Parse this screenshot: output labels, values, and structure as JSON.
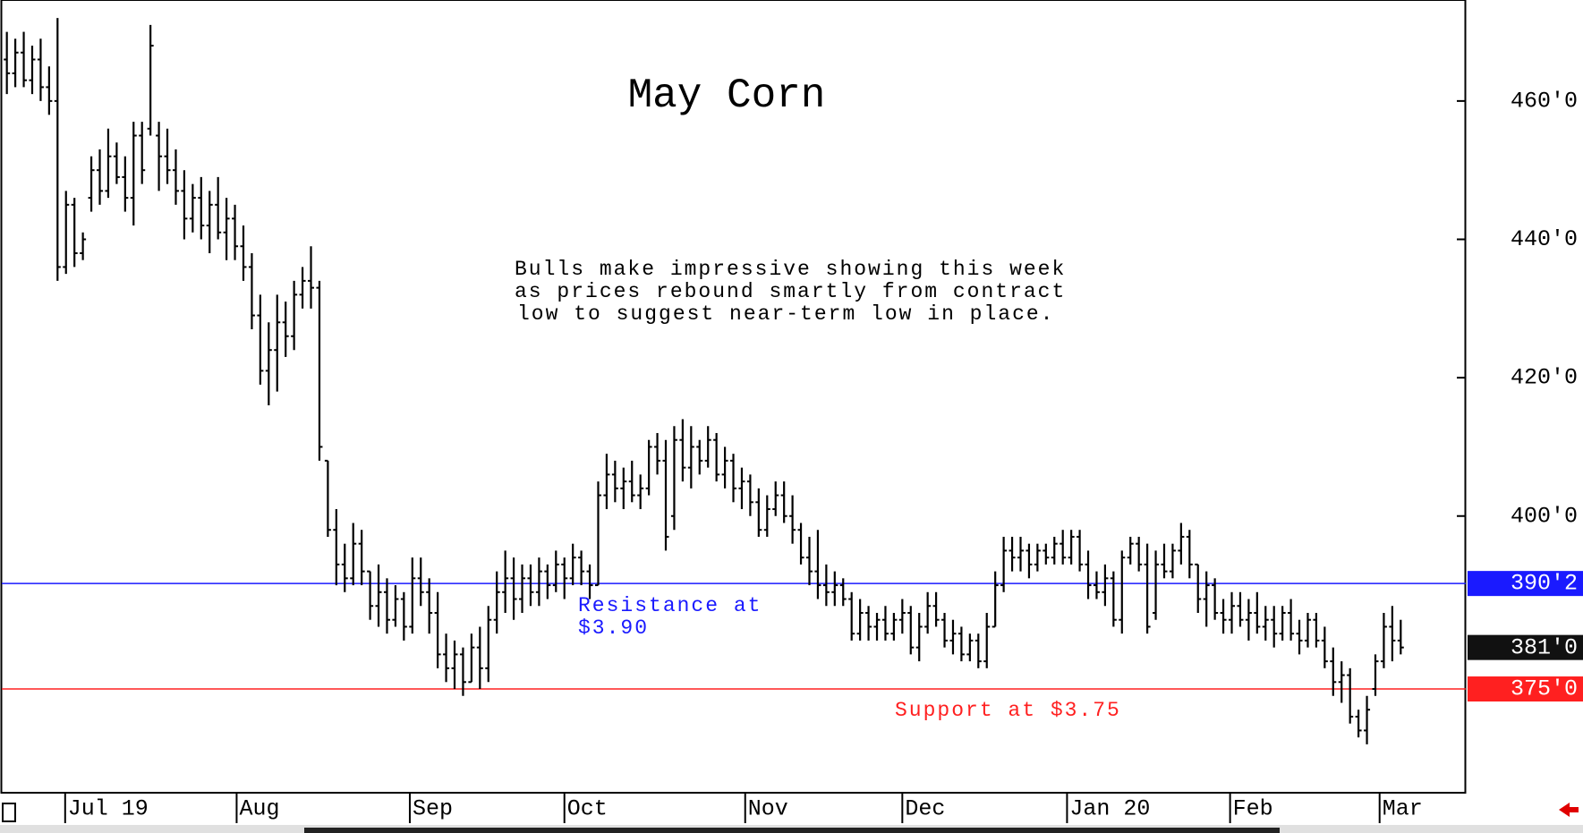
{
  "chart_data": {
    "type": "ohlc",
    "title": "May Corn",
    "annotation": [
      "Bulls make impressive showing this week",
      "as prices rebound smartly from contract",
      "low to suggest near-term low in place."
    ],
    "color": "#000000",
    "ylim": [
      360,
      474.6
    ],
    "xlim": [
      -0.6,
      172.7
    ],
    "yticks": [
      {
        "value": 400,
        "label": "400'0"
      },
      {
        "value": 420,
        "label": "420'0"
      },
      {
        "value": 440,
        "label": "440'0"
      },
      {
        "value": 460,
        "label": "460'0"
      }
    ],
    "xticks": [
      {
        "value": 6.9,
        "label": "Jul 19"
      },
      {
        "value": 27.2,
        "label": "Aug"
      },
      {
        "value": 47.7,
        "label": "Sep"
      },
      {
        "value": 66,
        "label": "Oct"
      },
      {
        "value": 87.4,
        "label": "Nov"
      },
      {
        "value": 106,
        "label": "Dec"
      },
      {
        "value": 125.5,
        "label": "Jan 20"
      },
      {
        "value": 144.8,
        "label": "Feb"
      },
      {
        "value": 162.5,
        "label": "Mar"
      }
    ],
    "lines": [
      {
        "value": 390.25,
        "color": "#1a1aff",
        "text": [
          "Resistance at",
          "$3.90"
        ]
      },
      {
        "value": 375,
        "color": "#ff2020",
        "text": [
          "Support at $3.75"
        ]
      }
    ],
    "price_tags": [
      {
        "value": 390.25,
        "label": "390'2",
        "color": "#1a1aff"
      },
      {
        "value": 381,
        "label": "381'0",
        "color": "#111111"
      },
      {
        "value": 375,
        "label": "375'0",
        "color": "#ff2020"
      }
    ],
    "bars": [
      [
        466,
        470,
        461,
        464
      ],
      [
        464,
        469,
        462,
        467
      ],
      [
        467,
        470,
        462,
        463
      ],
      [
        463,
        468,
        461,
        466
      ],
      [
        466,
        469,
        460,
        462
      ],
      [
        462,
        465,
        458,
        460
      ],
      [
        460,
        472,
        434,
        436
      ],
      [
        436,
        447,
        435,
        445
      ],
      [
        445,
        446,
        436,
        438
      ],
      [
        438,
        441,
        437,
        440
      ],
      [
        446,
        452,
        444,
        450
      ],
      [
        450,
        453,
        445,
        447
      ],
      [
        447,
        456,
        446,
        452
      ],
      [
        452,
        454,
        448,
        449
      ],
      [
        449,
        452,
        444,
        446
      ],
      [
        446,
        457,
        442,
        455
      ],
      [
        455,
        457,
        448,
        450
      ],
      [
        456,
        471,
        455,
        468
      ],
      [
        455,
        457,
        447,
        452
      ],
      [
        452,
        456,
        448,
        450
      ],
      [
        450,
        453,
        445,
        447
      ],
      [
        447,
        450,
        440,
        443
      ],
      [
        443,
        448,
        441,
        446
      ],
      [
        446,
        449,
        440,
        442
      ],
      [
        442,
        447,
        438,
        445
      ],
      [
        445,
        449,
        440,
        441
      ],
      [
        441,
        446,
        437,
        443
      ],
      [
        443,
        445,
        437,
        439
      ],
      [
        439,
        442,
        434,
        436
      ],
      [
        436,
        438,
        427,
        429
      ],
      [
        429,
        432,
        419,
        421
      ],
      [
        421,
        428,
        416,
        424
      ],
      [
        424,
        432,
        418,
        428
      ],
      [
        428,
        431,
        423,
        426
      ],
      [
        426,
        434,
        424,
        432
      ],
      [
        432,
        436,
        430,
        434
      ],
      [
        434,
        439,
        430,
        433
      ],
      [
        433,
        434,
        408,
        410
      ],
      [
        408,
        408,
        397,
        398
      ],
      [
        398,
        401,
        390,
        393
      ],
      [
        393,
        396,
        389,
        391
      ],
      [
        391,
        399,
        390,
        396
      ],
      [
        396,
        398,
        390,
        392
      ],
      [
        392,
        392,
        385,
        387
      ],
      [
        387,
        393,
        384,
        389
      ],
      [
        389,
        391,
        383,
        385
      ],
      [
        385,
        390,
        384,
        388
      ],
      [
        388,
        389,
        382,
        384
      ],
      [
        384,
        394,
        383,
        391
      ],
      [
        391,
        394,
        387,
        389
      ],
      [
        389,
        391,
        383,
        386
      ],
      [
        386,
        389,
        378,
        380
      ],
      [
        380,
        383,
        376,
        378
      ],
      [
        378,
        382,
        375,
        380
      ],
      [
        380,
        381,
        374,
        376
      ],
      [
        376,
        383,
        376,
        381
      ],
      [
        381,
        384,
        375,
        378
      ],
      [
        378,
        387,
        376,
        385
      ],
      [
        385,
        392,
        383,
        389
      ],
      [
        389,
        395,
        386,
        391
      ],
      [
        391,
        394,
        385,
        388
      ],
      [
        388,
        393,
        386,
        391
      ],
      [
        391,
        393,
        387,
        389
      ],
      [
        389,
        394,
        387,
        392
      ],
      [
        392,
        393,
        388,
        390
      ],
      [
        390,
        395,
        389,
        393
      ],
      [
        393,
        394,
        388,
        391
      ],
      [
        391,
        396,
        390,
        394
      ],
      [
        394,
        395,
        390,
        392
      ],
      [
        392,
        393,
        388,
        390
      ],
      [
        390,
        405,
        390,
        403
      ],
      [
        403,
        409,
        401,
        406
      ],
      [
        406,
        408,
        402,
        404
      ],
      [
        404,
        407,
        401,
        405
      ],
      [
        405,
        408,
        402,
        403
      ],
      [
        403,
        406,
        401,
        404
      ],
      [
        404,
        411,
        403,
        410
      ],
      [
        410,
        412,
        406,
        408
      ],
      [
        408,
        411,
        395,
        397
      ],
      [
        400,
        413,
        398,
        411
      ],
      [
        411,
        414,
        405,
        407
      ],
      [
        407,
        413,
        404,
        410
      ],
      [
        410,
        411,
        406,
        408
      ],
      [
        408,
        413,
        407,
        411
      ],
      [
        411,
        412,
        405,
        406
      ],
      [
        406,
        410,
        404,
        408
      ],
      [
        408,
        409,
        402,
        404
      ],
      [
        404,
        407,
        401,
        405
      ],
      [
        405,
        406,
        400,
        402
      ],
      [
        402,
        404,
        397,
        398
      ],
      [
        398,
        403,
        397,
        401
      ],
      [
        401,
        405,
        400,
        403
      ],
      [
        403,
        405,
        399,
        400
      ],
      [
        400,
        403,
        396,
        398
      ],
      [
        398,
        399,
        393,
        394
      ],
      [
        394,
        397,
        390,
        392
      ],
      [
        392,
        398,
        388,
        390
      ],
      [
        390,
        393,
        387,
        389
      ],
      [
        389,
        392,
        387,
        390
      ],
      [
        390,
        391,
        387,
        388
      ],
      [
        388,
        389,
        382,
        383
      ],
      [
        383,
        388,
        382,
        386
      ],
      [
        386,
        387,
        382,
        384
      ],
      [
        384,
        386,
        382,
        385
      ],
      [
        385,
        387,
        382,
        383
      ],
      [
        383,
        386,
        382,
        385
      ],
      [
        385,
        388,
        383,
        386
      ],
      [
        386,
        387,
        380,
        381
      ],
      [
        381,
        386,
        379,
        384
      ],
      [
        384,
        389,
        383,
        387
      ],
      [
        387,
        389,
        384,
        385
      ],
      [
        385,
        386,
        381,
        382
      ],
      [
        382,
        385,
        380,
        383
      ],
      [
        383,
        384,
        379,
        380
      ],
      [
        380,
        383,
        379,
        382
      ],
      [
        382,
        383,
        378,
        379
      ],
      [
        379,
        386,
        378,
        384
      ],
      [
        384,
        392,
        384,
        390
      ],
      [
        390,
        397,
        389,
        395
      ],
      [
        395,
        397,
        392,
        394
      ],
      [
        394,
        397,
        392,
        395
      ],
      [
        395,
        396,
        391,
        393
      ],
      [
        393,
        396,
        392,
        395
      ],
      [
        395,
        396,
        393,
        394
      ],
      [
        394,
        397,
        393,
        396
      ],
      [
        396,
        398,
        393,
        394
      ],
      [
        394,
        398,
        393,
        397
      ],
      [
        397,
        398,
        392,
        393
      ],
      [
        393,
        395,
        388,
        390
      ],
      [
        390,
        392,
        388,
        389
      ],
      [
        389,
        393,
        387,
        391
      ],
      [
        391,
        392,
        384,
        385
      ],
      [
        385,
        395,
        383,
        394
      ],
      [
        394,
        397,
        393,
        396
      ],
      [
        396,
        397,
        392,
        393
      ],
      [
        393,
        396,
        383,
        384
      ],
      [
        386,
        395,
        385,
        393
      ],
      [
        393,
        396,
        391,
        392
      ],
      [
        392,
        396,
        391,
        395
      ],
      [
        395,
        399,
        393,
        397
      ],
      [
        397,
        398,
        391,
        393
      ],
      [
        393,
        393,
        386,
        388
      ],
      [
        388,
        392,
        384,
        390
      ],
      [
        390,
        391,
        385,
        386
      ],
      [
        386,
        388,
        383,
        385
      ],
      [
        385,
        389,
        383,
        387
      ],
      [
        387,
        389,
        384,
        385
      ],
      [
        385,
        388,
        382,
        386
      ],
      [
        386,
        389,
        383,
        384
      ],
      [
        384,
        387,
        382,
        385
      ],
      [
        385,
        387,
        381,
        383
      ],
      [
        383,
        387,
        382,
        386
      ],
      [
        386,
        388,
        382,
        383
      ],
      [
        383,
        385,
        380,
        382
      ],
      [
        382,
        386,
        381,
        385
      ],
      [
        385,
        386,
        381,
        382
      ],
      [
        382,
        384,
        378,
        379
      ],
      [
        379,
        381,
        374,
        376
      ],
      [
        376,
        379,
        373,
        377
      ],
      [
        377,
        378,
        370,
        371
      ],
      [
        371,
        372,
        368,
        369
      ],
      [
        369,
        374,
        367,
        372
      ],
      [
        375,
        380,
        374,
        379
      ],
      [
        379,
        386,
        378,
        384
      ],
      [
        384,
        387,
        379,
        382
      ],
      [
        382,
        385,
        380,
        381
      ]
    ]
  }
}
